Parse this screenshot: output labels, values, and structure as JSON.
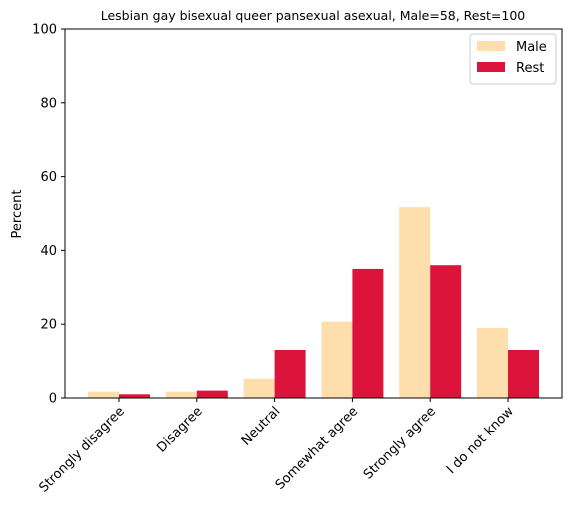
{
  "chart_data": {
    "type": "bar",
    "title": "Lesbian gay bisexual queer pansexual asexual, Male=58, Rest=100",
    "xlabel": "",
    "ylabel": "Percent",
    "ylim": [
      0,
      100
    ],
    "yticks": [
      0,
      20,
      40,
      60,
      80,
      100
    ],
    "categories": [
      "Strongly disagree",
      "Disagree",
      "Neutral",
      "Somewhat agree",
      "Strongly agree",
      "I do not know"
    ],
    "series": [
      {
        "name": "Male",
        "color": "#ffdead",
        "values": [
          1.7,
          1.7,
          5.2,
          20.7,
          51.7,
          19.0
        ]
      },
      {
        "name": "Rest",
        "color": "#dc143c",
        "values": [
          1.0,
          2.0,
          13.0,
          35.0,
          36.0,
          13.0
        ]
      }
    ],
    "legend": "top-right",
    "grid": false
  }
}
